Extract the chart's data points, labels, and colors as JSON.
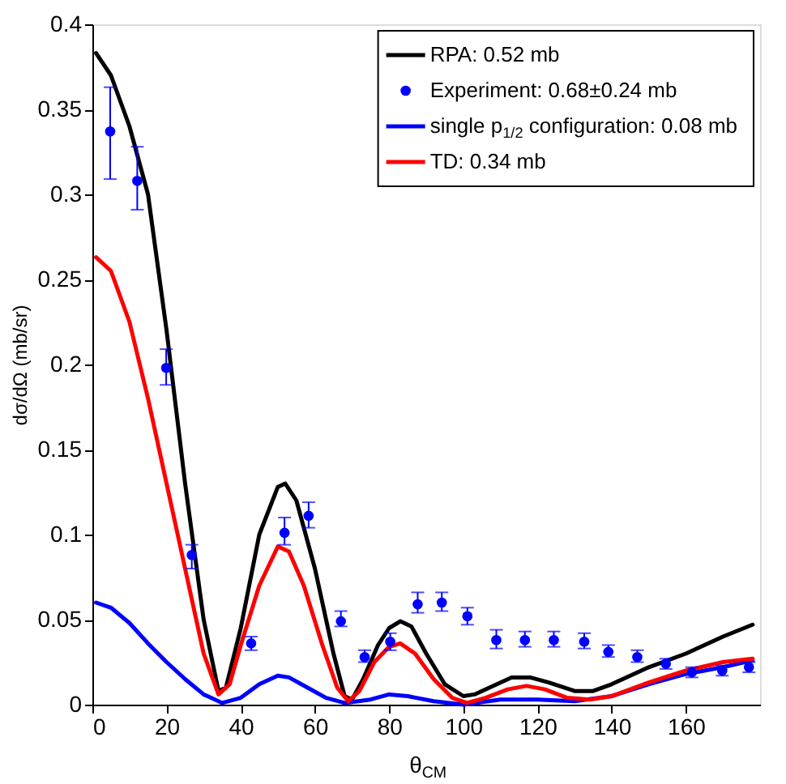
{
  "chart_data": {
    "type": "line",
    "xlabel": "θ$_{CM}$",
    "ylabel": "dσ/dΩ (mb/sr)",
    "xlim": [
      0,
      180
    ],
    "ylim": [
      0,
      0.4
    ],
    "xticks": [
      0,
      20,
      40,
      60,
      80,
      100,
      120,
      140,
      160
    ],
    "yticks": [
      0,
      0.05,
      0.1,
      0.15,
      0.2,
      0.25,
      0.3,
      0.35,
      0.4
    ],
    "grid": false,
    "legend": "top right",
    "series": [
      {
        "name": "RPA: 0.52 mb",
        "color": "#000000",
        "x": [
          1,
          5,
          10,
          15,
          20,
          25,
          30,
          34,
          36,
          40,
          45,
          50,
          52,
          55,
          60,
          65,
          68,
          70,
          73,
          77,
          80,
          83,
          86,
          90,
          95,
          100,
          103,
          108,
          113,
          118,
          123,
          130,
          135,
          140,
          150,
          160,
          170,
          178
        ],
        "values": [
          0.383,
          0.37,
          0.34,
          0.3,
          0.22,
          0.13,
          0.05,
          0.008,
          0.01,
          0.045,
          0.1,
          0.128,
          0.13,
          0.12,
          0.08,
          0.03,
          0.005,
          0.003,
          0.015,
          0.035,
          0.045,
          0.049,
          0.046,
          0.03,
          0.012,
          0.005,
          0.006,
          0.011,
          0.016,
          0.016,
          0.013,
          0.008,
          0.008,
          0.012,
          0.022,
          0.03,
          0.04,
          0.047
        ]
      },
      {
        "name": "Experiment: 0.68±0.24 mb",
        "type": "scatter",
        "color": "#0000ff",
        "marker": "circle",
        "x": [
          4.8,
          12.1,
          19.9,
          26.8,
          42.8,
          51.8,
          58.3,
          67,
          73.4,
          80.3,
          87.7,
          94.2,
          101.1,
          108.9,
          116.6,
          124.4,
          132.6,
          139.1,
          146.9,
          154.6,
          161.6,
          169.8,
          177
        ],
        "values": [
          0.337,
          0.308,
          0.198,
          0.088,
          0.036,
          0.101,
          0.111,
          0.049,
          0.028,
          0.037,
          0.059,
          0.06,
          0.052,
          0.038,
          0.038,
          0.038,
          0.037,
          0.031,
          0.028,
          0.024,
          0.019,
          0.02,
          0.022
        ],
        "errors": [
          [
            0.309,
            0.363
          ],
          [
            0.291,
            0.328
          ],
          [
            0.188,
            0.209
          ],
          [
            0.08,
            0.094
          ],
          [
            0.032,
            0.04
          ],
          [
            0.094,
            0.11
          ],
          [
            0.104,
            0.119
          ],
          [
            0.046,
            0.055
          ],
          [
            0.025,
            0.032
          ],
          [
            0.032,
            0.042
          ],
          [
            0.054,
            0.066
          ],
          [
            0.055,
            0.066
          ],
          [
            0.047,
            0.057
          ],
          [
            0.033,
            0.044
          ],
          [
            0.034,
            0.043
          ],
          [
            0.034,
            0.043
          ],
          [
            0.033,
            0.042
          ],
          [
            0.028,
            0.035
          ],
          [
            0.025,
            0.032
          ],
          [
            0.021,
            0.027
          ],
          [
            0.016,
            0.022
          ],
          [
            0.017,
            0.023
          ],
          [
            0.019,
            0.025
          ]
        ]
      },
      {
        "name": "single p$_{1/2}$ configuration: 0.08 mb",
        "color": "#0000ff",
        "x": [
          1,
          5,
          10,
          15,
          20,
          25,
          30,
          35,
          40,
          45,
          50,
          53,
          58,
          63,
          68,
          75,
          80,
          85,
          92,
          100,
          110,
          120,
          130,
          140,
          150,
          160,
          170,
          178
        ],
        "values": [
          0.06,
          0.057,
          0.048,
          0.036,
          0.025,
          0.015,
          0.006,
          0.001,
          0.004,
          0.012,
          0.017,
          0.016,
          0.01,
          0.004,
          0.001,
          0.003,
          0.006,
          0.005,
          0.002,
          0.0,
          0.003,
          0.003,
          0.002,
          0.005,
          0.012,
          0.018,
          0.022,
          0.026
        ]
      },
      {
        "name": "TD: 0.34 mb",
        "color": "#ff0000",
        "x": [
          1,
          5,
          10,
          15,
          20,
          25,
          30,
          34,
          37,
          40,
          45,
          50,
          53,
          57,
          62,
          66,
          69,
          72,
          76,
          80,
          83,
          87,
          92,
          97,
          101,
          106,
          112,
          117,
          122,
          128,
          134,
          140,
          150,
          160,
          170,
          178
        ],
        "values": [
          0.263,
          0.255,
          0.225,
          0.18,
          0.13,
          0.08,
          0.03,
          0.006,
          0.012,
          0.035,
          0.07,
          0.093,
          0.09,
          0.07,
          0.035,
          0.01,
          0.002,
          0.008,
          0.025,
          0.034,
          0.036,
          0.03,
          0.015,
          0.004,
          0.001,
          0.004,
          0.009,
          0.011,
          0.009,
          0.004,
          0.003,
          0.005,
          0.013,
          0.02,
          0.025,
          0.027
        ]
      }
    ]
  }
}
